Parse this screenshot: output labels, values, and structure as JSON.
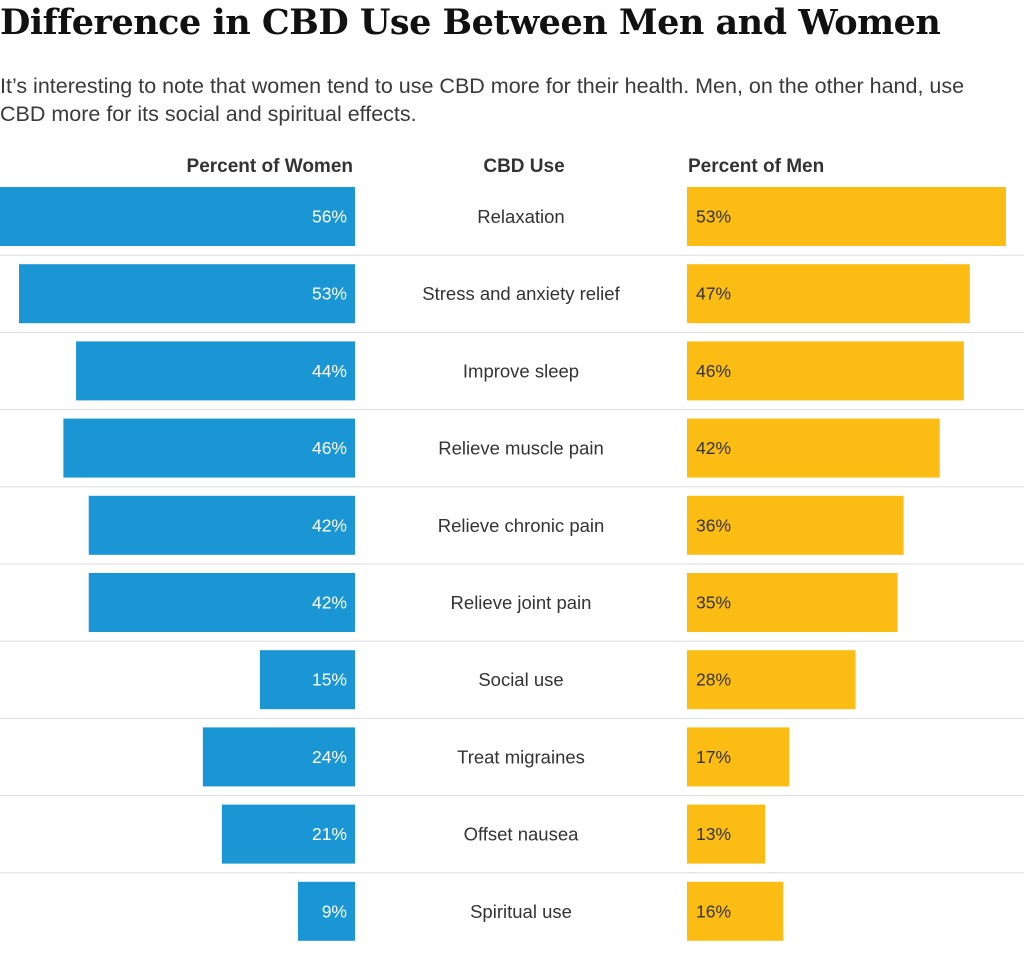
{
  "title": "Difference in CBD Use Between Men and Women",
  "subtitle": "It’s interesting to note that women tend to use CBD more for their health. Men, on the other hand, use CBD more for its social and spiritual effects.",
  "headers": {
    "women": "Percent of Women",
    "use": "CBD Use",
    "men": "Percent of Men"
  },
  "colors": {
    "women": "#1a96d4",
    "men": "#fbbd14",
    "divider": "#dcdcdc"
  },
  "chart_data": {
    "type": "bar",
    "title": "Difference in CBD Use Between Men and Women",
    "categories": [
      "Relaxation",
      "Stress and anxiety relief",
      "Improve sleep",
      "Relieve muscle pain",
      "Relieve chronic pain",
      "Relieve joint pain",
      "Social use",
      "Treat migraines",
      "Offset nausea",
      "Spiritual use"
    ],
    "series": [
      {
        "name": "Percent of Women",
        "values": [
          56,
          53,
          44,
          46,
          42,
          42,
          15,
          24,
          21,
          9
        ],
        "labels": [
          "56%",
          "53%",
          "44%",
          "46%",
          "42%",
          "42%",
          "15%",
          "24%",
          "21%",
          "9%"
        ]
      },
      {
        "name": "Percent of Men",
        "values": [
          53,
          47,
          46,
          42,
          36,
          35,
          28,
          17,
          13,
          16
        ],
        "labels": [
          "53%",
          "47%",
          "46%",
          "42%",
          "36%",
          "35%",
          "28%",
          "17%",
          "13%",
          "16%"
        ]
      }
    ],
    "xlim": [
      0,
      56
    ],
    "orientation": "horizontal butterfly",
    "grid": false,
    "legend": "column headers at top"
  }
}
